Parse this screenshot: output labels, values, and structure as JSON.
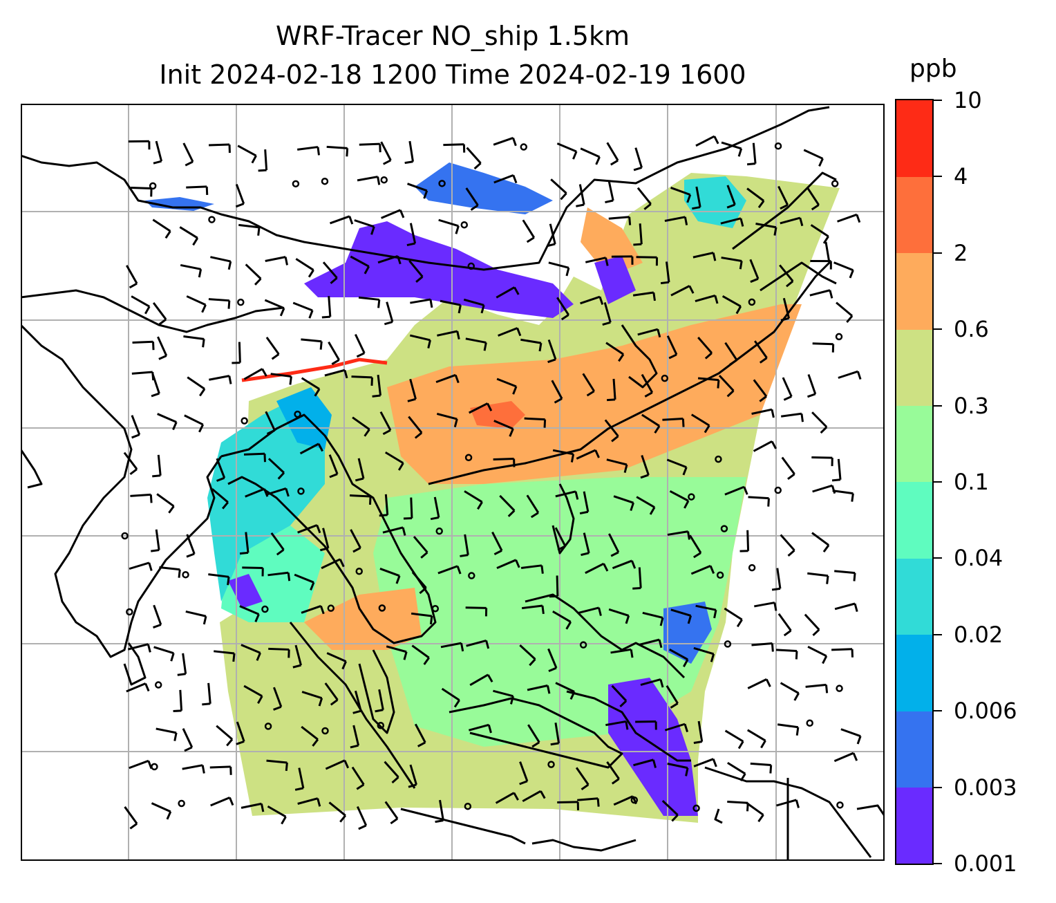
{
  "title": {
    "line1": "WRF-Tracer NO_ship 1.5km",
    "line2": "Init 2024-02-18 1200 Time 2024-02-19 1600"
  },
  "colorbar": {
    "unit": "ppb",
    "levels": [
      "0.001",
      "0.003",
      "0.006",
      "0.02",
      "0.04",
      "0.1",
      "0.3",
      "0.6",
      "2",
      "4",
      "10"
    ],
    "colors": [
      "#6a2bff",
      "#3573f0",
      "#02b0ea",
      "#31dbd7",
      "#5ffcbf",
      "#98fb99",
      "#cde183",
      "#feab5c",
      "#fe6f3b",
      "#fe2b16"
    ]
  },
  "map": {
    "gridlines": true,
    "features": [
      "coastlines",
      "country-borders",
      "wind-barbs",
      "calm-circles",
      "tracer-concentration-field"
    ]
  }
}
